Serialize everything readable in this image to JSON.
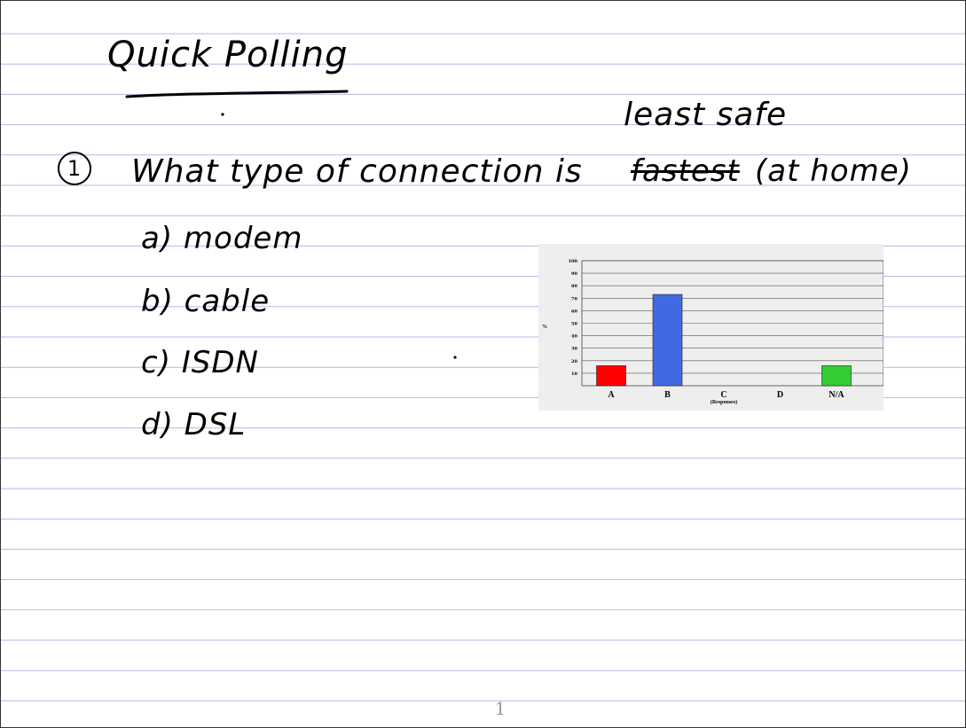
{
  "notes": {
    "title": "Quick Polling",
    "question_number": "1",
    "question_text": "What type of connection is",
    "struck_word": "fastest",
    "question_suffix": "(at home)",
    "correction": "least safe",
    "options": [
      {
        "text": "a) modem"
      },
      {
        "text": "b) cable"
      },
      {
        "text": "c) ISDN"
      },
      {
        "text": "d) DSL"
      }
    ]
  },
  "chart_data": {
    "type": "bar",
    "categories": [
      "A",
      "B",
      "C",
      "D",
      "N/A"
    ],
    "values": [
      16,
      73,
      0,
      0,
      16
    ],
    "colors": [
      "#ff0000",
      "#4169e1",
      "#000000",
      "#000000",
      "#33cc33"
    ],
    "xlabel": "(Responses)",
    "ylabel": "%",
    "ylim": [
      0,
      100
    ],
    "yticks": [
      10,
      20,
      30,
      40,
      50,
      60,
      70,
      80,
      90,
      100
    ],
    "grid": true
  },
  "footer": {
    "page_number": "1"
  }
}
